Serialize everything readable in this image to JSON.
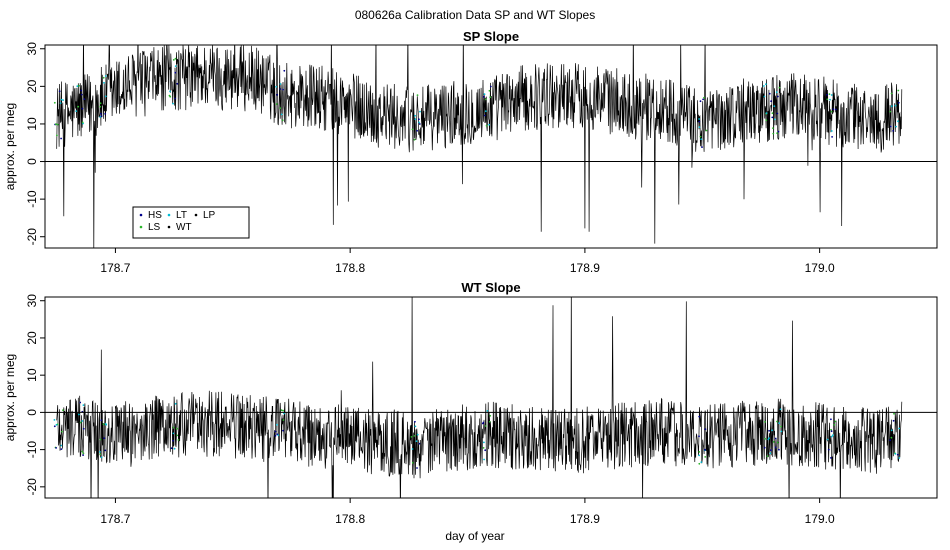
{
  "figure": {
    "main_title": "080626a   Calibration Data SP and WT Slopes",
    "xlabel": "day of year"
  },
  "chart_data": [
    {
      "type": "line",
      "title": "SP Slope",
      "xlabel": "",
      "ylabel": "approx. per meg",
      "xlim": [
        178.67,
        179.05
      ],
      "ylim": [
        -23,
        31
      ],
      "xticks": [
        178.7,
        178.8,
        178.9,
        179.0
      ],
      "xtick_labels": [
        "178.7",
        "178.8",
        "178.9",
        "179.0"
      ],
      "yticks": [
        -20,
        -10,
        0,
        10,
        20,
        30
      ],
      "ytick_labels": [
        "-20",
        "-10",
        "0",
        "10",
        "20",
        "30"
      ],
      "reference_line_y": 0,
      "grid": false,
      "legend": {
        "position": "lower-left",
        "entries": [
          {
            "label": "HS",
            "color": "#00008b"
          },
          {
            "label": "LS",
            "color": "#2bb52b"
          },
          {
            "label": "LT",
            "color": "#00bcd4"
          },
          {
            "label": "WT",
            "color": "#000000"
          },
          {
            "label": "LP",
            "color": "#000000"
          }
        ]
      },
      "series": [
        {
          "name": "WT",
          "color": "#000000",
          "x": [
            178.675,
            178.69,
            178.705,
            178.72,
            178.74,
            178.76,
            178.77,
            178.785,
            178.8,
            178.815,
            178.83,
            178.845,
            178.86,
            178.875,
            178.89,
            178.905,
            178.92,
            178.935,
            178.95,
            178.965,
            178.98,
            178.995,
            179.01,
            179.025,
            179.035
          ],
          "y": [
            12,
            15,
            20,
            22,
            23,
            22,
            18,
            17,
            15,
            12,
            11,
            13,
            14,
            17,
            18,
            17,
            15,
            14,
            10,
            13,
            14,
            15,
            12,
            11,
            14
          ]
        }
      ]
    },
    {
      "type": "line",
      "title": "WT Slope",
      "xlabel": "day of year",
      "ylabel": "approx. per meg",
      "xlim": [
        178.67,
        179.05
      ],
      "ylim": [
        -23,
        31
      ],
      "xticks": [
        178.7,
        178.8,
        178.9,
        179.0
      ],
      "xtick_labels": [
        "178.7",
        "178.8",
        "178.9",
        "179.0"
      ],
      "yticks": [
        -20,
        -10,
        0,
        10,
        20,
        30
      ],
      "ytick_labels": [
        "-20",
        "-10",
        "0",
        "10",
        "20",
        "30"
      ],
      "reference_line_y": 0,
      "grid": false,
      "series": [
        {
          "name": "WT",
          "color": "#000000",
          "x": [
            178.675,
            178.69,
            178.705,
            178.72,
            178.74,
            178.76,
            178.77,
            178.785,
            178.8,
            178.815,
            178.83,
            178.845,
            178.86,
            178.875,
            178.89,
            178.905,
            178.92,
            178.935,
            178.95,
            178.965,
            178.98,
            178.995,
            179.01,
            179.025,
            179.035
          ],
          "y": [
            -3,
            -5,
            -6,
            -4,
            -3,
            -4,
            -5,
            -6,
            -7,
            -8,
            -9,
            -7,
            -6,
            -7,
            -8,
            -7,
            -6,
            -5,
            -7,
            -6,
            -5,
            -6,
            -7,
            -8,
            -6
          ]
        }
      ]
    }
  ]
}
